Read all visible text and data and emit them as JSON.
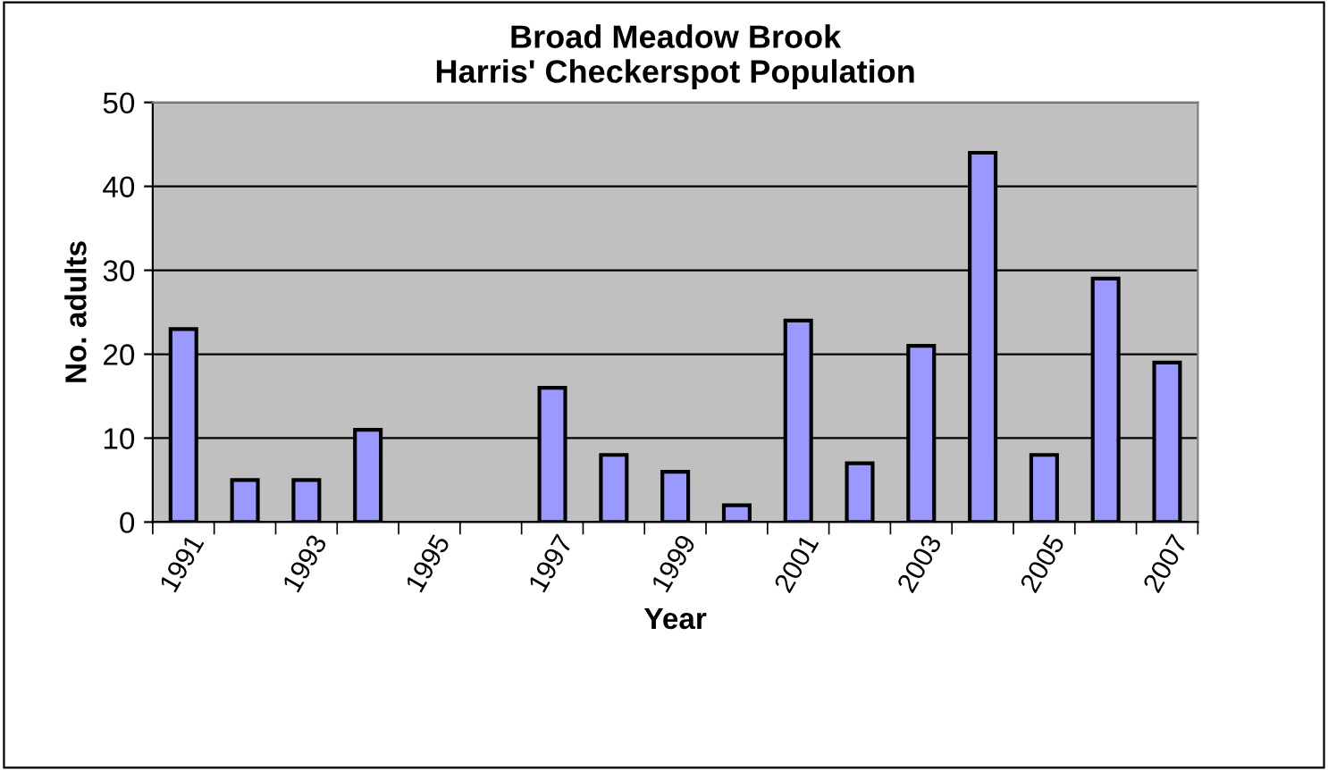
{
  "chart_data": {
    "type": "bar",
    "title": "Broad Meadow Brook\nHarris' Checkerspot Population",
    "xlabel": "Year",
    "ylabel": "No. adults",
    "categories": [
      "1991",
      null,
      "1993",
      null,
      "1995",
      null,
      "1997",
      null,
      "1999",
      null,
      "2001",
      null,
      "2003",
      null,
      "2005",
      null,
      "2007"
    ],
    "values": [
      23,
      5,
      5,
      11,
      null,
      null,
      16,
      8,
      6,
      2,
      24,
      7,
      21,
      44,
      8,
      29,
      19
    ],
    "color": "#9999ff",
    "ylim": [
      0,
      50
    ],
    "yticks": [
      0,
      10,
      20,
      30,
      40,
      50
    ],
    "grid": "y",
    "legend": false
  }
}
